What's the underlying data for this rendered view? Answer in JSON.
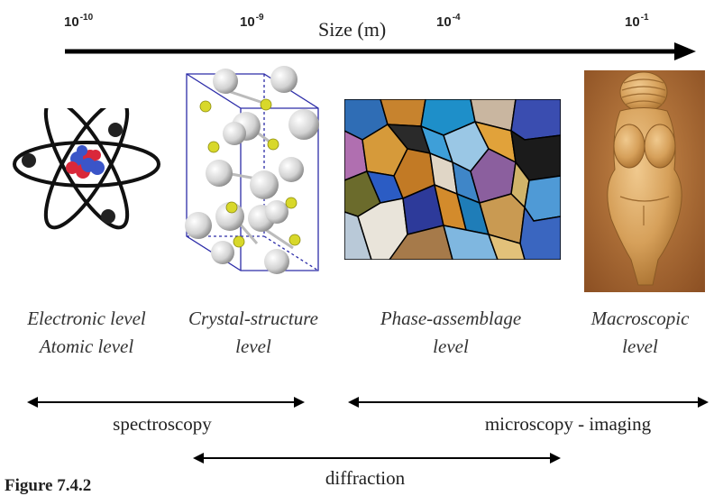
{
  "axis": {
    "title": "Size (m)",
    "ticks": [
      {
        "base": "10",
        "exp": "-10"
      },
      {
        "base": "10",
        "exp": "-9"
      },
      {
        "base": "10",
        "exp": "-4"
      },
      {
        "base": "10",
        "exp": "-1"
      }
    ]
  },
  "levels": {
    "atomic": {
      "line1": "Electronic level",
      "line2": "Atomic level",
      "icon": "atom-icon"
    },
    "crystal": {
      "line1": "Crystal-structure",
      "line2": "level",
      "icon": "crystal-lattice-icon"
    },
    "phase": {
      "line1": "Phase-assemblage",
      "line2": "level",
      "icon": "thin-section-micrograph"
    },
    "macro": {
      "line1": "Macroscopic",
      "line2": "level",
      "icon": "figurine-photo"
    }
  },
  "methods": {
    "spectroscopy": "spectroscopy",
    "imaging": "microscopy - imaging",
    "diffraction": "diffraction"
  },
  "caption": "Figure 7.4.2",
  "colors": {
    "arrow": "#000000",
    "nucleus_red": "#d9283a",
    "nucleus_blue": "#3a55c8",
    "lattice_box": "#2c2ca8",
    "sulfur": "#d8d82a",
    "figurine": "#d6a05a",
    "figurine_bg": "#9c5d2c"
  }
}
